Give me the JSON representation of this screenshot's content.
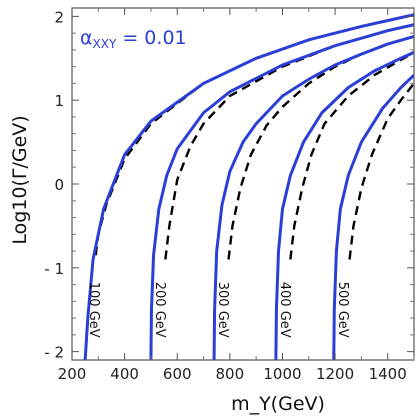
{
  "chart_data": {
    "type": "line",
    "xlabel": "m_Y(GeV)",
    "ylabel": "Log10(Γ/GeV)",
    "xlim": [
      200,
      1500
    ],
    "ylim": [
      -2.1,
      2.1
    ],
    "x_ticks": [
      200,
      400,
      600,
      800,
      1000,
      1200,
      1400
    ],
    "y_ticks": [
      {
        "value": 2,
        "label": "2"
      },
      {
        "value": 1,
        "label": "1"
      },
      {
        "value": 0,
        "label": "0"
      },
      {
        "value": -1,
        "label": "- 1"
      },
      {
        "value": -2,
        "label": "- 2"
      }
    ],
    "annotation": {
      "symbol": "α",
      "subscript": "XXY",
      "rest": " = 0.01"
    },
    "series_solid_color": "#2b3fd6",
    "series_dashed_color": "#000000",
    "series": [
      {
        "label": "100 GeV",
        "threshold": 250,
        "solid": [
          [
            250,
            -2.1
          ],
          [
            260,
            -1.6
          ],
          [
            280,
            -0.9
          ],
          [
            320,
            -0.3
          ],
          [
            400,
            0.35
          ],
          [
            500,
            0.75
          ],
          [
            700,
            1.2
          ],
          [
            900,
            1.5
          ],
          [
            1100,
            1.72
          ],
          [
            1300,
            1.88
          ],
          [
            1500,
            2.02
          ]
        ],
        "dashed": [
          [
            290,
            -0.85
          ],
          [
            300,
            -0.6
          ],
          [
            330,
            -0.25
          ],
          [
            400,
            0.3
          ],
          [
            500,
            0.72
          ],
          [
            700,
            1.2
          ],
          [
            900,
            1.5
          ],
          [
            1100,
            1.72
          ],
          [
            1300,
            1.88
          ],
          [
            1500,
            2.02
          ]
        ]
      },
      {
        "label": "200 GeV",
        "threshold": 500,
        "solid": [
          [
            500,
            -2.1
          ],
          [
            502,
            -1.5
          ],
          [
            510,
            -0.85
          ],
          [
            530,
            -0.3
          ],
          [
            560,
            0.1
          ],
          [
            600,
            0.42
          ],
          [
            700,
            0.85
          ],
          [
            800,
            1.1
          ],
          [
            1000,
            1.42
          ],
          [
            1200,
            1.65
          ],
          [
            1400,
            1.83
          ],
          [
            1500,
            1.9
          ]
        ],
        "dashed": [
          [
            555,
            -0.9
          ],
          [
            570,
            -0.5
          ],
          [
            600,
            0.05
          ],
          [
            650,
            0.45
          ],
          [
            700,
            0.72
          ],
          [
            800,
            1.05
          ],
          [
            1000,
            1.4
          ],
          [
            1200,
            1.65
          ],
          [
            1400,
            1.83
          ],
          [
            1500,
            1.9
          ]
        ]
      },
      {
        "label": "300 GeV",
        "threshold": 740,
        "solid": [
          [
            740,
            -2.1
          ],
          [
            742,
            -1.5
          ],
          [
            750,
            -0.8
          ],
          [
            770,
            -0.25
          ],
          [
            800,
            0.15
          ],
          [
            850,
            0.5
          ],
          [
            900,
            0.72
          ],
          [
            1000,
            1.05
          ],
          [
            1100,
            1.25
          ],
          [
            1200,
            1.42
          ],
          [
            1300,
            1.55
          ],
          [
            1400,
            1.67
          ],
          [
            1500,
            1.76
          ]
        ],
        "dashed": [
          [
            795,
            -0.9
          ],
          [
            810,
            -0.5
          ],
          [
            840,
            -0.05
          ],
          [
            880,
            0.35
          ],
          [
            940,
            0.7
          ],
          [
            1000,
            0.92
          ],
          [
            1100,
            1.2
          ],
          [
            1200,
            1.4
          ],
          [
            1300,
            1.55
          ],
          [
            1400,
            1.67
          ],
          [
            1500,
            1.76
          ]
        ]
      },
      {
        "label": "400 GeV",
        "threshold": 975,
        "solid": [
          [
            975,
            -2.1
          ],
          [
            977,
            -1.5
          ],
          [
            985,
            -0.8
          ],
          [
            1000,
            -0.3
          ],
          [
            1030,
            0.1
          ],
          [
            1080,
            0.5
          ],
          [
            1150,
            0.85
          ],
          [
            1250,
            1.15
          ],
          [
            1350,
            1.35
          ],
          [
            1450,
            1.5
          ],
          [
            1500,
            1.57
          ]
        ],
        "dashed": [
          [
            1030,
            -0.9
          ],
          [
            1045,
            -0.5
          ],
          [
            1075,
            -0.05
          ],
          [
            1110,
            0.35
          ],
          [
            1160,
            0.72
          ],
          [
            1250,
            1.05
          ],
          [
            1350,
            1.3
          ],
          [
            1450,
            1.48
          ],
          [
            1500,
            1.57
          ]
        ]
      },
      {
        "label": "500 GeV",
        "threshold": 1195,
        "solid": [
          [
            1195,
            -2.1
          ],
          [
            1197,
            -1.5
          ],
          [
            1205,
            -0.8
          ],
          [
            1220,
            -0.3
          ],
          [
            1250,
            0.1
          ],
          [
            1300,
            0.5
          ],
          [
            1380,
            0.9
          ],
          [
            1450,
            1.15
          ],
          [
            1500,
            1.3
          ]
        ],
        "dashed": [
          [
            1255,
            -0.9
          ],
          [
            1270,
            -0.5
          ],
          [
            1300,
            -0.05
          ],
          [
            1340,
            0.35
          ],
          [
            1400,
            0.78
          ],
          [
            1450,
            1.0
          ],
          [
            1500,
            1.2
          ]
        ]
      }
    ]
  }
}
